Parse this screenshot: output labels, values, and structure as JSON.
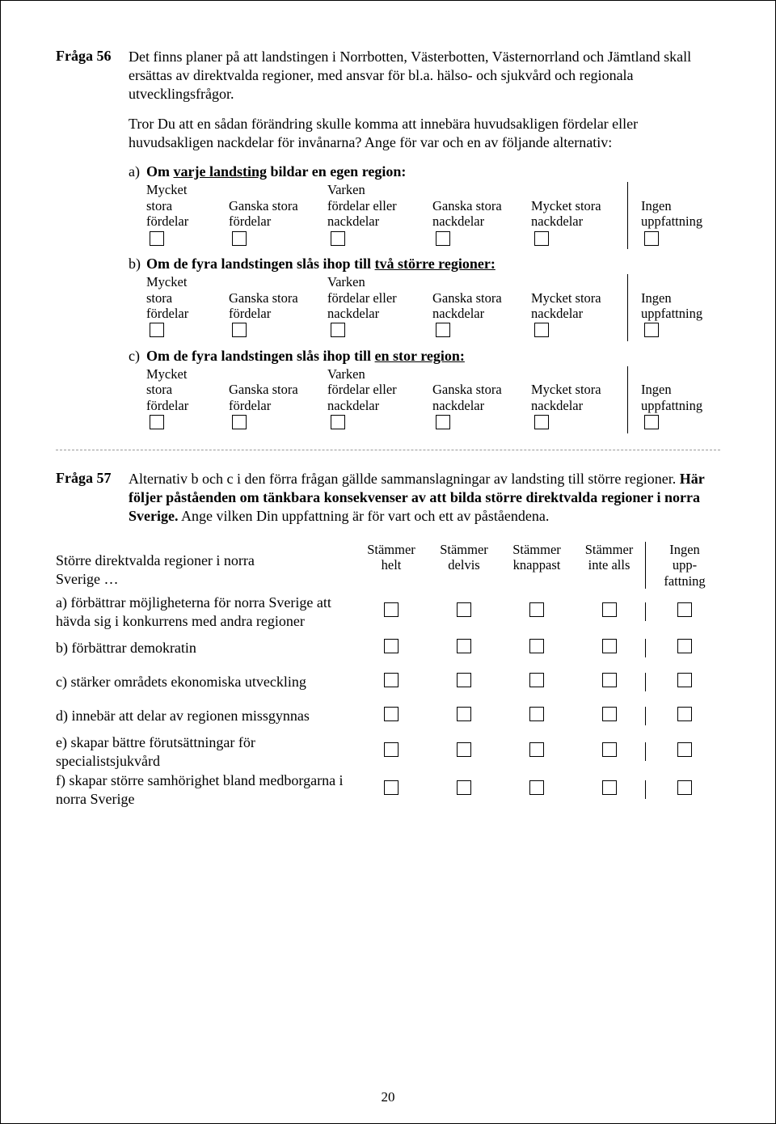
{
  "page_number": "20",
  "q56": {
    "number": "Fråga 56",
    "text_p1": "Det finns planer på att landstingen i Norrbotten, Västerbotten, Västernorrland och Jämtland skall ersättas av direktvalda regioner, med ansvar för bl.a. hälso- och sjukvård och regionala utvecklingsfrågor.",
    "text_p2": "Tror Du att en sådan förändring skulle komma att innebära huvudsakligen fördelar eller huvudsakligen nackdelar för invånarna? Ange för var och en av följande alternativ:",
    "scale": {
      "c1_l1": "Mycket",
      "c1_l2": "stora",
      "c1_l3": "fördelar",
      "c2_l1": "Ganska stora",
      "c2_l2": "fördelar",
      "c3_l1": "Varken",
      "c3_l2": "fördelar eller",
      "c3_l3": "nackdelar",
      "c4_l1": "Ganska stora",
      "c4_l2": "nackdelar",
      "c5_l1": "Mycket stora",
      "c5_l2": "nackdelar",
      "c6_l1": "Ingen",
      "c6_l2": "uppfattning"
    },
    "subs": {
      "a": {
        "letter": "a)",
        "plain": "Om ",
        "u": "varje landsting",
        "tail": " bildar en egen region:"
      },
      "b": {
        "letter": "b)",
        "plain": "Om de fyra landstingen slås ihop till ",
        "u": "två större regioner:",
        "tail": ""
      },
      "c": {
        "letter": "c)",
        "plain": "Om de fyra landstingen slås ihop till ",
        "u": "en stor region:",
        "tail": ""
      }
    }
  },
  "q57": {
    "number": "Fråga 57",
    "text_plain1": "Alternativ b och c i den förra frågan gällde sammanslagningar av landsting till större regioner. ",
    "text_bold": "Här följer påståenden om tänkbara konsekvenser av att bilda större direktvalda regioner i norra Sverige.",
    "text_plain2": " Ange vilken Din uppfattning är för vart och ett av påståendena.",
    "lead_l1": "Större direktvalda regioner i norra",
    "lead_l2": "Sverige …",
    "headers": {
      "h1_l1": "Stämmer",
      "h1_l2": "helt",
      "h2_l1": "Stämmer",
      "h2_l2": "delvis",
      "h3_l1": "Stämmer",
      "h3_l2": "knappast",
      "h4_l1": "Stämmer",
      "h4_l2": "inte alls",
      "h5_l1": "Ingen",
      "h5_l2": "upp-",
      "h5_l3": "fattning"
    },
    "rows": {
      "a": "a) förbättrar möjligheterna för norra Sverige att hävda sig i konkurrens med andra regioner",
      "b": "b) förbättrar demokratin",
      "c": "c) stärker områdets ekonomiska utveckling",
      "d": "d) innebär att delar av regionen missgynnas",
      "e": "e) skapar bättre förutsättningar för specialistsjukvård",
      "f": "f) skapar större samhörighet bland medborgarna i norra Sverige"
    }
  }
}
